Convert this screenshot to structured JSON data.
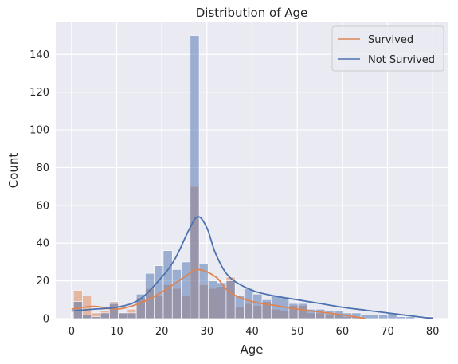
{
  "chart_data": {
    "type": "bar",
    "title": "Distribution of Age",
    "xlabel": "Age",
    "ylabel": "Count",
    "xlim": [
      -3.5,
      83.5
    ],
    "ylim": [
      0,
      157
    ],
    "xticks": [
      0,
      10,
      20,
      30,
      40,
      50,
      60,
      70,
      80
    ],
    "yticks": [
      0,
      20,
      40,
      60,
      80,
      100,
      120,
      140
    ],
    "grid": true,
    "legend_position": "top-right",
    "bin_width": 1.99,
    "bin_starts": [
      0.42,
      2.41,
      4.4,
      6.39,
      8.38,
      10.37,
      12.36,
      14.35,
      16.34,
      18.33,
      20.32,
      22.31,
      24.3,
      26.29,
      28.28,
      30.27,
      32.26,
      34.25,
      36.24,
      38.23,
      40.22,
      42.21,
      44.2,
      46.19,
      48.18,
      50.17,
      52.16,
      54.15,
      56.14,
      58.13,
      60.12,
      62.11,
      64.1,
      66.09,
      68.08,
      70.07,
      72.06,
      74.05,
      76.04,
      78.03
    ],
    "series": [
      {
        "name": "Survived",
        "color": "#dd8452",
        "values": [
          15,
          12,
          3,
          4,
          9,
          3,
          5,
          11,
          16,
          12,
          18,
          16,
          12,
          70,
          18,
          16,
          17,
          22,
          6,
          8,
          7,
          9,
          5,
          4,
          7,
          7,
          3,
          3,
          2,
          2,
          1,
          1,
          0,
          0,
          0,
          0,
          0,
          0,
          0,
          1
        ],
        "kde_x": [
          0,
          5,
          10,
          15,
          20,
          25,
          28,
          32,
          35,
          40,
          45,
          50,
          55,
          60,
          65
        ],
        "kde_y": [
          5,
          6.5,
          5,
          8,
          14,
          22,
          26,
          22,
          14,
          9,
          7,
          5,
          3.5,
          2,
          0
        ]
      },
      {
        "name": "Not Survived",
        "color": "#4c72b0",
        "values": [
          9,
          2,
          1,
          3,
          8,
          3,
          3,
          13,
          24,
          28,
          36,
          26,
          30,
          150,
          29,
          20,
          19,
          20,
          12,
          16,
          13,
          10,
          12,
          11,
          8,
          8,
          5,
          5,
          4,
          4,
          3,
          3,
          2,
          2,
          2,
          3,
          1,
          1,
          0,
          1
        ],
        "kde_x": [
          0,
          5,
          10,
          15,
          20,
          23,
          26,
          28,
          30,
          32,
          35,
          40,
          45,
          50,
          55,
          60,
          65,
          70,
          75,
          80
        ],
        "kde_y": [
          4,
          5,
          6,
          10,
          22,
          32,
          47,
          54,
          48,
          34,
          22,
          15,
          12,
          10,
          8,
          6,
          4.5,
          3,
          1.5,
          0
        ]
      }
    ]
  }
}
